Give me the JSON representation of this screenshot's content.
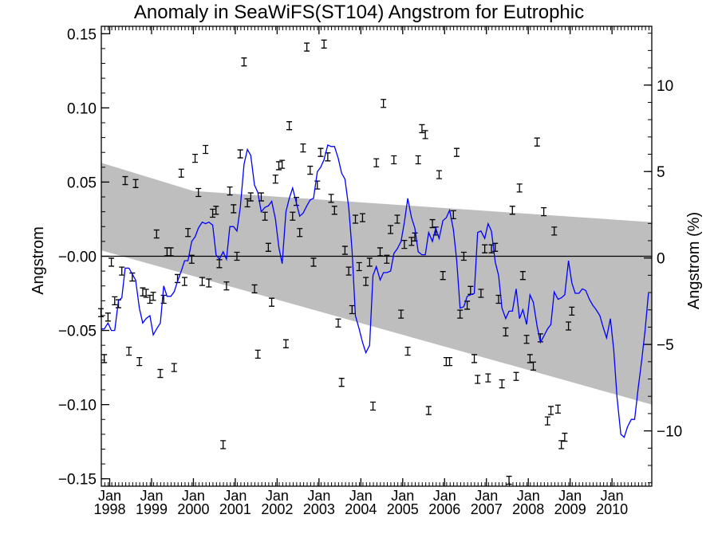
{
  "chart_data": {
    "type": "line",
    "title": "Anomaly in SeaWiFS(ST104) Angstrom for Eutrophic",
    "ylabel": "Angstrom",
    "ylabel_right": "Angstrom (%)",
    "ylim": [
      -0.155,
      0.155
    ],
    "ylim_right": [
      -13.2,
      13.4
    ],
    "yticks": [
      -0.15,
      -0.1,
      -0.05,
      0.0,
      0.05,
      0.1,
      0.15
    ],
    "ytick_labels": [
      "−0.15",
      "−0.10",
      "−0.05",
      "−0.00",
      "0.05",
      "0.10",
      "0.15"
    ],
    "yticks_right": [
      -10,
      -5,
      0,
      5,
      10
    ],
    "ytick_labels_right": [
      "−10",
      "−5",
      "0",
      "5",
      "10"
    ],
    "xlim": [
      1997.8,
      2010.95
    ],
    "x_ticks": [
      {
        "x": 1998,
        "month": "Jan",
        "year": "1998"
      },
      {
        "x": 1999,
        "month": "Jan",
        "year": "1999"
      },
      {
        "x": 2000,
        "month": "Jan",
        "year": "2000"
      },
      {
        "x": 2001,
        "month": "Jan",
        "year": "2001"
      },
      {
        "x": 2002,
        "month": "Jan",
        "year": "2002"
      },
      {
        "x": 2003,
        "month": "Jan",
        "year": "2003"
      },
      {
        "x": 2004,
        "month": "Jan",
        "year": "2004"
      },
      {
        "x": 2005,
        "month": "Jan",
        "year": "2005"
      },
      {
        "x": 2006,
        "month": "Jan",
        "year": "2006"
      },
      {
        "x": 2007,
        "month": "Jan",
        "year": "2007"
      },
      {
        "x": 2008,
        "month": "Jan",
        "year": "2008"
      },
      {
        "x": 2009,
        "month": "Jan",
        "year": "2009"
      },
      {
        "x": 2010,
        "month": "Jan",
        "year": "2010"
      }
    ],
    "zero_line": 0,
    "trend_band": {
      "color": "#bebebe",
      "upper": [
        [
          1997.8,
          0.063
        ],
        [
          2000.0,
          0.044
        ],
        [
          2010.95,
          0.023
        ]
      ],
      "lower": [
        [
          2010.95,
          -0.1
        ],
        [
          1997.8,
          0.004
        ]
      ]
    },
    "series": [
      {
        "color": "#0000ff",
        "points": [
          [
            1997.79,
            -0.049
          ],
          [
            1997.87,
            -0.049
          ],
          [
            1997.96,
            -0.045
          ],
          [
            1998.04,
            -0.05
          ],
          [
            1998.12,
            -0.05
          ],
          [
            1998.21,
            -0.03
          ],
          [
            1998.29,
            -0.028
          ],
          [
            1998.37,
            -0.008
          ],
          [
            1998.46,
            -0.008
          ],
          [
            1998.54,
            -0.012
          ],
          [
            1998.62,
            -0.016
          ],
          [
            1998.71,
            -0.035
          ],
          [
            1998.79,
            -0.045
          ],
          [
            1998.87,
            -0.042
          ],
          [
            1998.96,
            -0.04
          ],
          [
            1999.04,
            -0.053
          ],
          [
            1999.12,
            -0.049
          ],
          [
            1999.21,
            -0.045
          ],
          [
            1999.29,
            -0.02
          ],
          [
            1999.37,
            -0.027
          ],
          [
            1999.46,
            -0.027
          ],
          [
            1999.54,
            -0.024
          ],
          [
            1999.62,
            -0.017
          ],
          [
            1999.71,
            -0.01
          ],
          [
            1999.79,
            -0.003
          ],
          [
            1999.87,
            -0.003
          ],
          [
            1999.96,
            0.01
          ],
          [
            2000.04,
            0.013
          ],
          [
            2000.12,
            0.019
          ],
          [
            2000.21,
            0.023
          ],
          [
            2000.29,
            0.022
          ],
          [
            2000.37,
            0.023
          ],
          [
            2000.46,
            0.021
          ],
          [
            2000.54,
            0.001
          ],
          [
            2000.62,
            -0.002
          ],
          [
            2000.71,
            0.003
          ],
          [
            2000.79,
            -0.002
          ],
          [
            2000.87,
            0.02
          ],
          [
            2000.96,
            0.02
          ],
          [
            2001.04,
            0.017
          ],
          [
            2001.12,
            0.033
          ],
          [
            2001.21,
            0.062
          ],
          [
            2001.29,
            0.072
          ],
          [
            2001.37,
            0.068
          ],
          [
            2001.46,
            0.048
          ],
          [
            2001.54,
            0.043
          ],
          [
            2001.62,
            0.03
          ],
          [
            2001.71,
            0.033
          ],
          [
            2001.79,
            0.034
          ],
          [
            2001.87,
            0.037
          ],
          [
            2001.96,
            0.025
          ],
          [
            2002.04,
            0.006
          ],
          [
            2002.12,
            -0.005
          ],
          [
            2002.21,
            0.03
          ],
          [
            2002.29,
            0.039
          ],
          [
            2002.37,
            0.046
          ],
          [
            2002.46,
            0.036
          ],
          [
            2002.54,
            0.027
          ],
          [
            2002.62,
            0.029
          ],
          [
            2002.71,
            0.034
          ],
          [
            2002.79,
            0.038
          ],
          [
            2002.87,
            0.039
          ],
          [
            2002.96,
            0.057
          ],
          [
            2003.04,
            0.06
          ],
          [
            2003.12,
            0.065
          ],
          [
            2003.21,
            0.075
          ],
          [
            2003.29,
            0.074
          ],
          [
            2003.37,
            0.074
          ],
          [
            2003.46,
            0.066
          ],
          [
            2003.54,
            0.056
          ],
          [
            2003.62,
            0.052
          ],
          [
            2003.71,
            0.033
          ],
          [
            2003.79,
            0.004
          ],
          [
            2003.87,
            -0.04
          ],
          [
            2003.96,
            -0.049
          ],
          [
            2004.04,
            -0.058
          ],
          [
            2004.12,
            -0.065
          ],
          [
            2004.21,
            -0.06
          ],
          [
            2004.29,
            -0.013
          ],
          [
            2004.37,
            -0.007
          ],
          [
            2004.46,
            -0.016
          ],
          [
            2004.54,
            -0.011
          ],
          [
            2004.62,
            -0.011
          ],
          [
            2004.71,
            -0.01
          ],
          [
            2004.79,
            0.002
          ],
          [
            2004.87,
            0.005
          ],
          [
            2004.96,
            0.01
          ],
          [
            2005.04,
            0.023
          ],
          [
            2005.12,
            0.039
          ],
          [
            2005.21,
            0.026
          ],
          [
            2005.29,
            0.019
          ],
          [
            2005.37,
            0.003
          ],
          [
            2005.46,
            0.001
          ],
          [
            2005.54,
            0.001
          ],
          [
            2005.62,
            0.016
          ],
          [
            2005.71,
            0.01
          ],
          [
            2005.79,
            0.019
          ],
          [
            2005.87,
            0.012
          ],
          [
            2005.96,
            0.024
          ],
          [
            2006.04,
            0.026
          ],
          [
            2006.12,
            0.031
          ],
          [
            2006.21,
            0.018
          ],
          [
            2006.29,
            -0.003
          ],
          [
            2006.37,
            -0.035
          ],
          [
            2006.46,
            -0.034
          ],
          [
            2006.54,
            -0.027
          ],
          [
            2006.62,
            -0.026
          ],
          [
            2006.71,
            -0.025
          ],
          [
            2006.79,
            0.016
          ],
          [
            2006.87,
            0.017
          ],
          [
            2006.96,
            0.012
          ],
          [
            2007.04,
            0.022
          ],
          [
            2007.12,
            0.017
          ],
          [
            2007.21,
            -0.004
          ],
          [
            2007.29,
            -0.013
          ],
          [
            2007.37,
            -0.035
          ],
          [
            2007.46,
            -0.042
          ],
          [
            2007.54,
            -0.037
          ],
          [
            2007.62,
            -0.037
          ],
          [
            2007.71,
            -0.022
          ],
          [
            2007.79,
            -0.042
          ],
          [
            2007.87,
            -0.036
          ],
          [
            2007.96,
            -0.046
          ],
          [
            2008.04,
            -0.026
          ],
          [
            2008.12,
            -0.031
          ],
          [
            2008.21,
            -0.047
          ],
          [
            2008.29,
            -0.058
          ],
          [
            2008.37,
            -0.054
          ],
          [
            2008.46,
            -0.049
          ],
          [
            2008.54,
            -0.046
          ],
          [
            2008.62,
            -0.024
          ],
          [
            2008.71,
            -0.029
          ],
          [
            2008.79,
            -0.028
          ],
          [
            2008.87,
            -0.026
          ],
          [
            2008.96,
            -0.003
          ],
          [
            2009.04,
            -0.018
          ],
          [
            2009.12,
            -0.025
          ],
          [
            2009.21,
            -0.025
          ],
          [
            2009.29,
            -0.022
          ],
          [
            2009.37,
            -0.023
          ],
          [
            2009.46,
            -0.029
          ],
          [
            2009.54,
            -0.033
          ],
          [
            2009.62,
            -0.036
          ],
          [
            2009.71,
            -0.04
          ],
          [
            2009.79,
            -0.048
          ],
          [
            2009.87,
            -0.055
          ],
          [
            2009.96,
            -0.042
          ],
          [
            2010.04,
            -0.063
          ],
          [
            2010.12,
            -0.095
          ],
          [
            2010.21,
            -0.12
          ],
          [
            2010.29,
            -0.122
          ],
          [
            2010.37,
            -0.115
          ],
          [
            2010.46,
            -0.11
          ],
          [
            2010.54,
            -0.11
          ],
          [
            2010.62,
            -0.09
          ],
          [
            2010.71,
            -0.07
          ],
          [
            2010.79,
            -0.05
          ],
          [
            2010.87,
            -0.025
          ]
        ]
      }
    ],
    "monthly_means": [
      [
        1997.79,
        -0.038
      ],
      [
        1997.87,
        -0.069
      ],
      [
        1997.96,
        -0.041
      ],
      [
        1998.04,
        -0.004
      ],
      [
        1998.12,
        -0.03
      ],
      [
        1998.21,
        -0.032
      ],
      [
        1998.29,
        -0.01
      ],
      [
        1998.37,
        0.051
      ],
      [
        1998.46,
        -0.064
      ],
      [
        1998.54,
        -0.014
      ],
      [
        1998.62,
        0.049
      ],
      [
        1998.71,
        -0.071
      ],
      [
        1998.79,
        -0.024
      ],
      [
        1998.87,
        -0.025
      ],
      [
        1998.96,
        -0.029
      ],
      [
        1999.04,
        -0.027
      ],
      [
        1999.12,
        0.015
      ],
      [
        1999.21,
        -0.079
      ],
      [
        1999.29,
        -0.029
      ],
      [
        1999.37,
        0.003
      ],
      [
        1999.46,
        0.003
      ],
      [
        1999.54,
        -0.075
      ],
      [
        1999.62,
        -0.015
      ],
      [
        1999.71,
        0.056
      ],
      [
        1999.79,
        -0.017
      ],
      [
        1999.87,
        0.016
      ],
      [
        1999.96,
        -0.002
      ],
      [
        2000.04,
        0.066
      ],
      [
        2000.12,
        0.043
      ],
      [
        2000.21,
        -0.017
      ],
      [
        2000.29,
        0.072
      ],
      [
        2000.37,
        -0.018
      ],
      [
        2000.46,
        0.029
      ],
      [
        2000.54,
        0.031
      ],
      [
        2000.62,
        -0.005
      ],
      [
        2000.71,
        -0.127
      ],
      [
        2000.79,
        -0.02
      ],
      [
        2000.87,
        0.044
      ],
      [
        2000.96,
        0.032
      ],
      [
        2001.04,
        0.0
      ],
      [
        2001.12,
        0.069
      ],
      [
        2001.21,
        0.131
      ],
      [
        2001.29,
        0.036
      ],
      [
        2001.37,
        0.04
      ],
      [
        2001.46,
        -0.022
      ],
      [
        2001.54,
        -0.066
      ],
      [
        2001.62,
        0.04
      ],
      [
        2001.71,
        0.027
      ],
      [
        2001.79,
        0.006
      ],
      [
        2001.87,
        -0.031
      ],
      [
        2001.96,
        0.052
      ],
      [
        2002.04,
        0.061
      ],
      [
        2002.12,
        0.062
      ],
      [
        2002.21,
        -0.059
      ],
      [
        2002.29,
        0.088
      ],
      [
        2002.37,
        0.027
      ],
      [
        2002.46,
        0.037
      ],
      [
        2002.54,
        0.016
      ],
      [
        2002.62,
        0.073
      ],
      [
        2002.71,
        0.141
      ],
      [
        2002.79,
        0.058
      ],
      [
        2002.87,
        -0.004
      ],
      [
        2002.96,
        0.048
      ],
      [
        2003.04,
        0.07
      ],
      [
        2003.12,
        0.143
      ],
      [
        2003.21,
        0.067
      ],
      [
        2003.29,
        0.039
      ],
      [
        2003.37,
        0.031
      ],
      [
        2003.46,
        -0.045
      ],
      [
        2003.54,
        -0.085
      ],
      [
        2003.62,
        0.004
      ],
      [
        2003.71,
        -0.01
      ],
      [
        2003.79,
        -0.036
      ],
      [
        2003.87,
        0.025
      ],
      [
        2003.96,
        -0.007
      ],
      [
        2004.04,
        0.026
      ],
      [
        2004.12,
        -0.017
      ],
      [
        2004.21,
        -0.004
      ],
      [
        2004.29,
        -0.101
      ],
      [
        2004.37,
        0.063
      ],
      [
        2004.46,
        0.003
      ],
      [
        2004.54,
        0.103
      ],
      [
        2004.62,
        -0.002
      ],
      [
        2004.71,
        0.018
      ],
      [
        2004.79,
        0.065
      ],
      [
        2004.87,
        0.025
      ],
      [
        2004.96,
        -0.039
      ],
      [
        2005.04,
        0.008
      ],
      [
        2005.12,
        -0.064
      ],
      [
        2005.21,
        0.01
      ],
      [
        2005.29,
        0.013
      ],
      [
        2005.37,
        0.065
      ],
      [
        2005.46,
        0.086
      ],
      [
        2005.54,
        0.082
      ],
      [
        2005.62,
        -0.104
      ],
      [
        2005.71,
        0.022
      ],
      [
        2005.79,
        0.017
      ],
      [
        2005.87,
        0.055
      ],
      [
        2005.96,
        -0.013
      ],
      [
        2006.04,
        -0.071
      ],
      [
        2006.12,
        -0.071
      ],
      [
        2006.21,
        0.028
      ],
      [
        2006.29,
        0.07
      ],
      [
        2006.37,
        -0.039
      ],
      [
        2006.46,
        0.0
      ],
      [
        2006.54,
        -0.033
      ],
      [
        2006.62,
        -0.023
      ],
      [
        2006.71,
        -0.069
      ],
      [
        2006.79,
        -0.083
      ],
      [
        2006.87,
        -0.025
      ],
      [
        2006.96,
        0.005
      ],
      [
        2007.04,
        -0.082
      ],
      [
        2007.12,
        0.005
      ],
      [
        2007.21,
        0.006
      ],
      [
        2007.29,
        -0.029
      ],
      [
        2007.37,
        -0.086
      ],
      [
        2007.46,
        -0.051
      ],
      [
        2007.54,
        -0.151
      ],
      [
        2007.62,
        0.031
      ],
      [
        2007.71,
        -0.081
      ],
      [
        2007.79,
        0.046
      ],
      [
        2007.87,
        -0.013
      ],
      [
        2007.96,
        -0.056
      ],
      [
        2008.04,
        -0.069
      ],
      [
        2008.12,
        -0.074
      ],
      [
        2008.21,
        0.077
      ],
      [
        2008.29,
        -0.055
      ],
      [
        2008.37,
        0.03
      ],
      [
        2008.46,
        -0.111
      ],
      [
        2008.54,
        -0.104
      ],
      [
        2008.62,
        0.017
      ],
      [
        2008.71,
        -0.103
      ],
      [
        2008.79,
        -0.127
      ],
      [
        2008.87,
        -0.122
      ],
      [
        2008.96,
        -0.047
      ],
      [
        2009.04,
        -0.037
      ]
    ]
  }
}
